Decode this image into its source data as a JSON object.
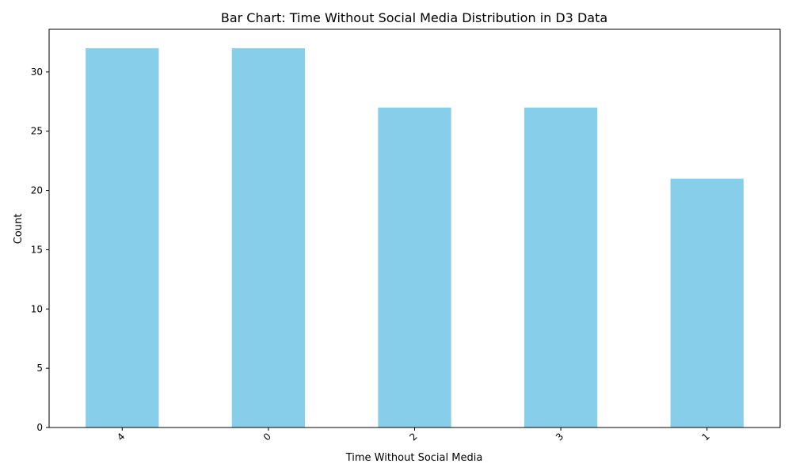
{
  "chart_data": {
    "type": "bar",
    "title": "Bar Chart: Time Without Social Media Distribution in D3 Data",
    "xlabel": "Time Without Social Media",
    "ylabel": "Count",
    "categories": [
      "4",
      "0",
      "2",
      "3",
      "1"
    ],
    "values": [
      32,
      32,
      27,
      27,
      21
    ],
    "ylim": [
      0,
      33.6
    ],
    "yticks": [
      0,
      5,
      10,
      15,
      20,
      25,
      30
    ],
    "bar_color": "#87ceeb",
    "x_tick_rotation_deg": 45,
    "grid": false,
    "legend": "none"
  }
}
